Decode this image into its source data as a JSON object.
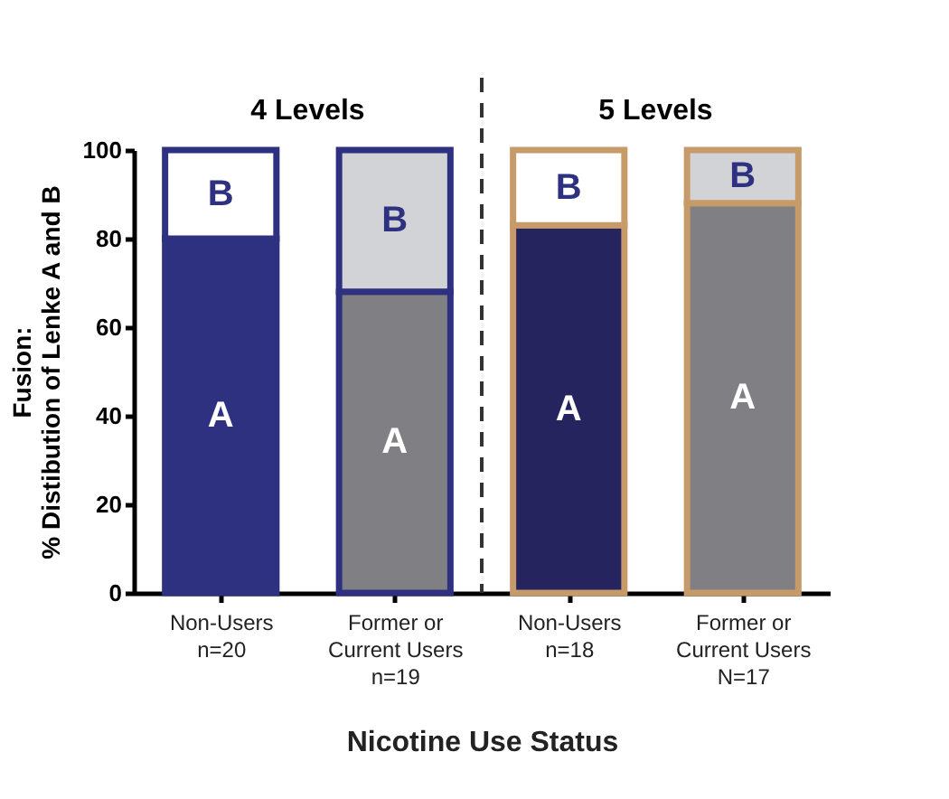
{
  "chart_data": {
    "type": "bar",
    "stacked": true,
    "categories": [
      "Non-Users\nn=20",
      "Former or\nCurrent Users\nn=19",
      "Non-Users\nn=18",
      "Former or\nCurrent Users\nN=17"
    ],
    "series": [
      {
        "name": "A",
        "colors": [
          "#2e3080",
          "#808084",
          "#26245e",
          "#808084"
        ],
        "values": [
          80,
          68,
          83,
          88
        ]
      },
      {
        "name": "B",
        "colors": [
          "#ffffff",
          "#d2d3d6",
          "#ffffff",
          "#d2d3d6"
        ],
        "values": [
          20,
          32,
          17,
          12
        ]
      }
    ],
    "xlabel": "Nicotine Use Status",
    "ylabel": "Fusion:\n% Distibution of Lenke A and B",
    "ylim": [
      0,
      100
    ],
    "yticks": [
      0,
      20,
      40,
      60,
      80,
      100
    ],
    "grid": false,
    "annotations": [
      "4 Levels",
      "5 Levels"
    ]
  }
}
